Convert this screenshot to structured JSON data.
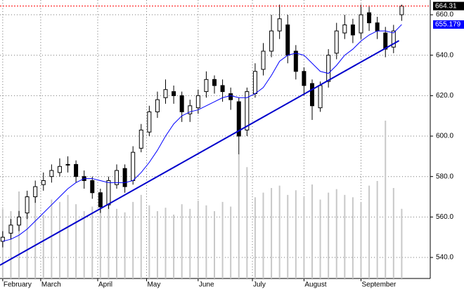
{
  "chart_data": {
    "type": "candlestick",
    "x": [
      0,
      3,
      6,
      9,
      12,
      15,
      18,
      21,
      24,
      27,
      30,
      33,
      36,
      39,
      42,
      45,
      48,
      51,
      54,
      57,
      60,
      63,
      66,
      69,
      72,
      75,
      78,
      81,
      84,
      87,
      90,
      93,
      96,
      99,
      102,
      105,
      108,
      111,
      114,
      117,
      120,
      123,
      126,
      129,
      132,
      135,
      138,
      141,
      144,
      147
    ],
    "open": [
      548,
      552,
      556,
      562,
      570,
      576,
      580,
      582,
      586,
      586,
      580,
      578,
      572,
      566,
      576,
      584,
      578,
      594,
      602,
      612,
      619,
      622,
      620,
      611,
      614,
      622,
      628,
      625,
      621,
      617,
      603,
      621,
      633,
      642,
      652,
      655,
      642,
      632,
      626,
      614,
      627,
      641,
      651,
      655,
      651,
      661,
      656,
      651,
      644,
      660
    ],
    "high": [
      553,
      559,
      563,
      573,
      578,
      582,
      586,
      589,
      590,
      588,
      583,
      580,
      574,
      580,
      586,
      586,
      595,
      606,
      615,
      622,
      628,
      625,
      622,
      618,
      623,
      632,
      630,
      628,
      624,
      619,
      624,
      636,
      646,
      660,
      665,
      660,
      645,
      634,
      628,
      627,
      643,
      656,
      660,
      658,
      665,
      664,
      659,
      654,
      655,
      665
    ],
    "low": [
      545,
      549,
      553,
      559,
      567,
      573,
      577,
      580,
      582,
      577,
      574,
      569,
      562,
      564,
      574,
      572,
      576,
      592,
      600,
      609,
      616,
      616,
      607,
      607,
      611,
      619,
      621,
      617,
      613,
      591,
      600,
      619,
      630,
      639,
      648,
      636,
      628,
      620,
      608,
      612,
      624,
      638,
      648,
      646,
      648,
      652,
      648,
      639,
      641,
      657
    ],
    "close": [
      550,
      556,
      560,
      570,
      575,
      578,
      583,
      585,
      586,
      580,
      578,
      572,
      565,
      578,
      583,
      575,
      592,
      603,
      612,
      618,
      623,
      620,
      612,
      615,
      620,
      628,
      625,
      622,
      618,
      600,
      622,
      632,
      642,
      652,
      658,
      640,
      632,
      625,
      615,
      625,
      640,
      652,
      655,
      650,
      660,
      656,
      652,
      643,
      652,
      664.31
    ],
    "ma_values": [
      548,
      549,
      551,
      554,
      558,
      562,
      566,
      570,
      574,
      577,
      579,
      579,
      578,
      577,
      577,
      577,
      578,
      582,
      587,
      593,
      600,
      606,
      610,
      612,
      613,
      615,
      617,
      619,
      620,
      619,
      619,
      621,
      624,
      630,
      637,
      640,
      641,
      640,
      636,
      632,
      631,
      635,
      640,
      643,
      647,
      650,
      652,
      652,
      651,
      655.179
    ],
    "ma_color": "#0000ff",
    "ma_last": 655.179,
    "volume": [
      60,
      58,
      75,
      62,
      70,
      55,
      68,
      66,
      72,
      64,
      58,
      62,
      70,
      74,
      60,
      57,
      66,
      72,
      63,
      58,
      61,
      55,
      64,
      60,
      67,
      63,
      58,
      66,
      62,
      107,
      96,
      70,
      74,
      78,
      80,
      72,
      76,
      70,
      81,
      68,
      74,
      77,
      72,
      70,
      66,
      80,
      84,
      136,
      78,
      60
    ],
    "volume_color": "#c8c8c8",
    "vlim": [
      0,
      240
    ],
    "candle_color": "#000000",
    "xlim": [
      -1,
      157
    ],
    "ylim": [
      529.6,
      667.3
    ],
    "yticks": [
      {
        "value": 540,
        "label": "540.0"
      },
      {
        "value": 560,
        "label": "560.0"
      },
      {
        "value": 580,
        "label": "580.0"
      },
      {
        "value": 600,
        "label": "600.0"
      },
      {
        "value": 620,
        "label": "620.0"
      },
      {
        "value": 640,
        "label": "640.0"
      },
      {
        "value": 660,
        "label": "660.0"
      }
    ],
    "xticks": [
      {
        "value": 0,
        "label": "February"
      },
      {
        "value": 14,
        "label": "March"
      },
      {
        "value": 35,
        "label": "April"
      },
      {
        "value": 53,
        "label": "May"
      },
      {
        "value": 72,
        "label": "June"
      },
      {
        "value": 92,
        "label": "July"
      },
      {
        "value": 111,
        "label": "August"
      },
      {
        "value": 132,
        "label": "September"
      }
    ],
    "trendline": {
      "x": [
        -1,
        146
      ],
      "y": [
        536.2,
        647.2
      ],
      "color": "#0000cc"
    },
    "last_price": 664.31,
    "last_price_color": "#ff0000",
    "grid": true
  }
}
